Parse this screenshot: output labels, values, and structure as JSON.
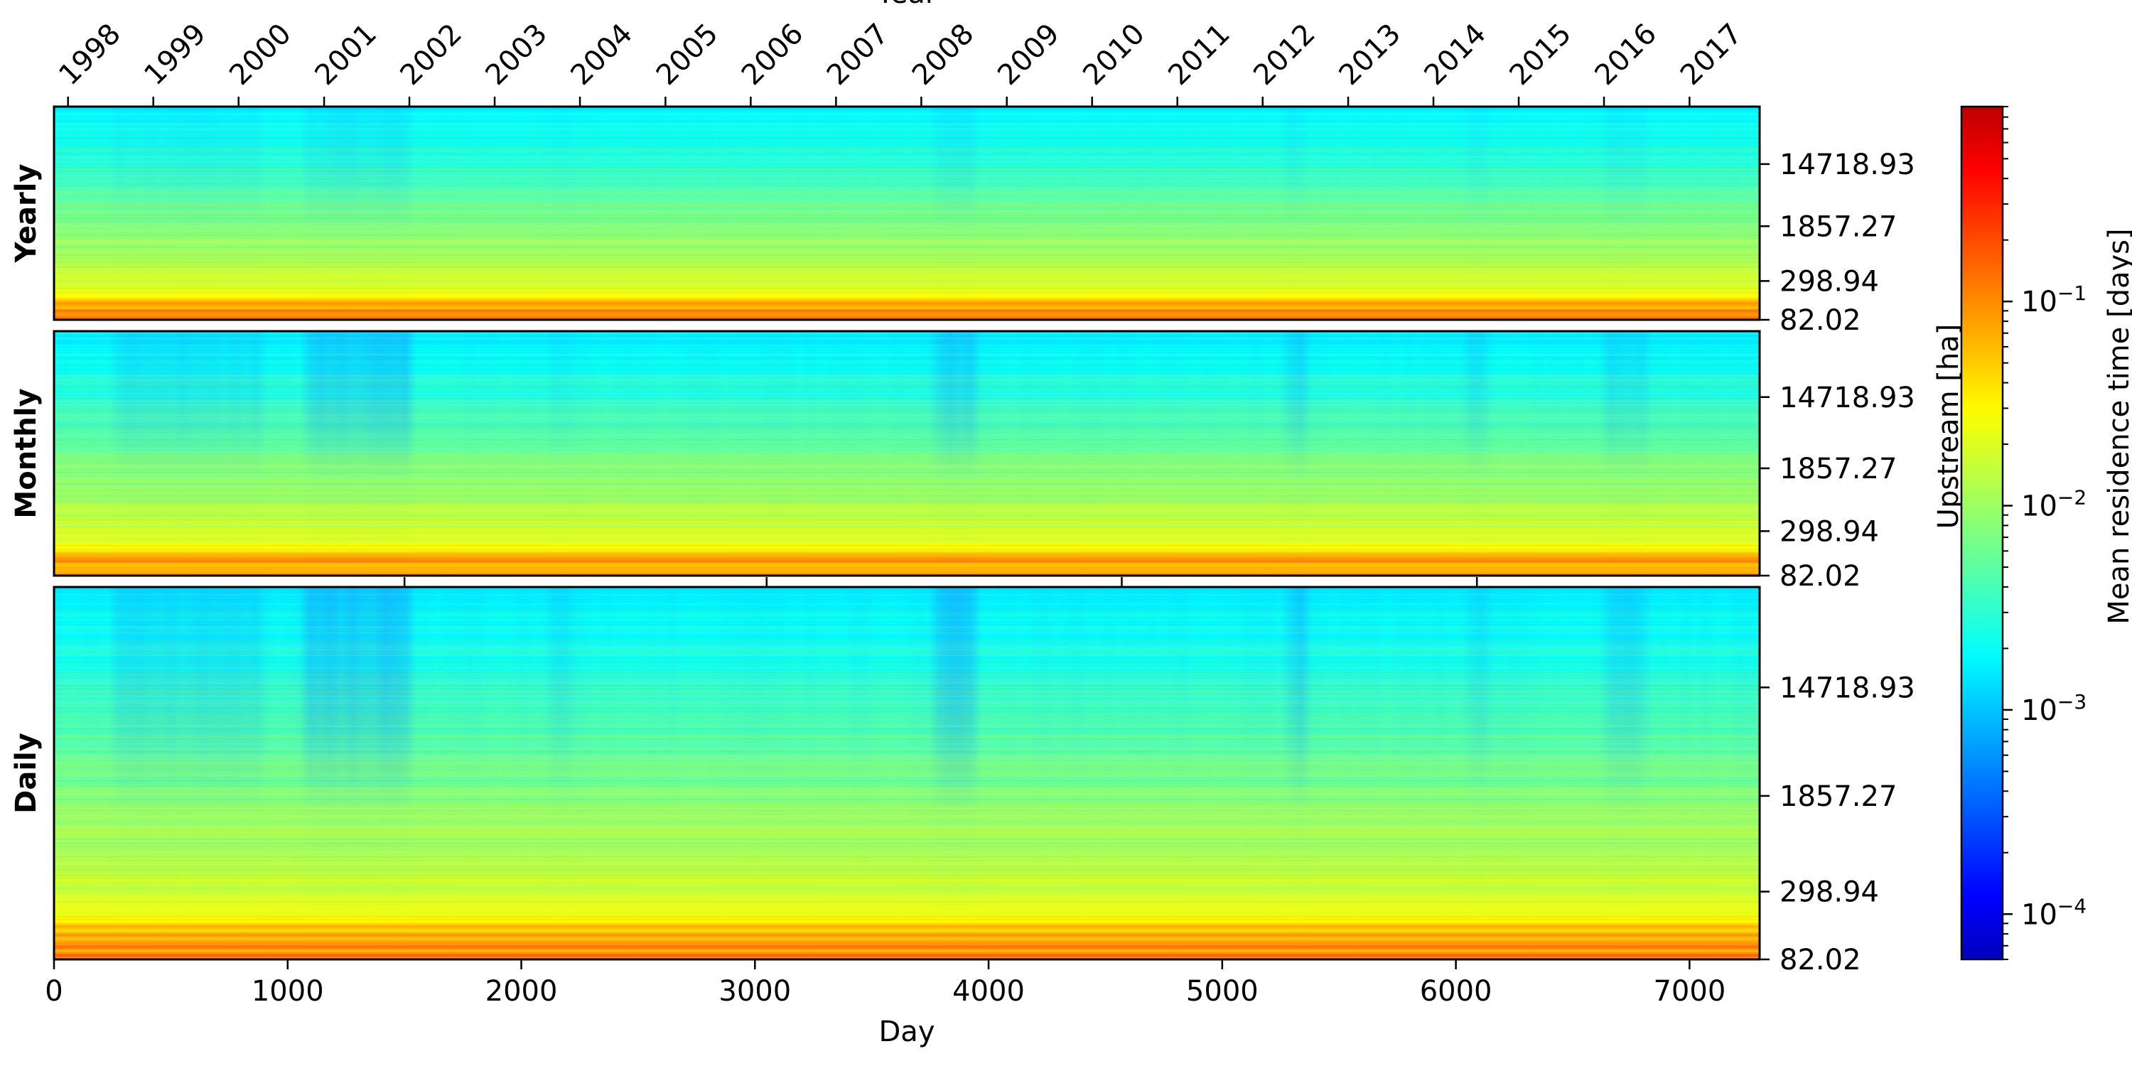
{
  "chart_data": {
    "type": "heatmap",
    "top_axis": {
      "label": "Year",
      "ticks": [
        {
          "label": "1998",
          "day": 60
        },
        {
          "label": "1999",
          "day": 425
        },
        {
          "label": "2000",
          "day": 790
        },
        {
          "label": "2001",
          "day": 1156
        },
        {
          "label": "2002",
          "day": 1521
        },
        {
          "label": "2003",
          "day": 1886
        },
        {
          "label": "2004",
          "day": 2251
        },
        {
          "label": "2005",
          "day": 2617
        },
        {
          "label": "2006",
          "day": 2982
        },
        {
          "label": "2007",
          "day": 3347
        },
        {
          "label": "2008",
          "day": 3712
        },
        {
          "label": "2009",
          "day": 4078
        },
        {
          "label": "2010",
          "day": 4443
        },
        {
          "label": "2011",
          "day": 4808
        },
        {
          "label": "2012",
          "day": 5173
        },
        {
          "label": "2013",
          "day": 5539
        },
        {
          "label": "2014",
          "day": 5904
        },
        {
          "label": "2015",
          "day": 6269
        },
        {
          "label": "2016",
          "day": 6634
        },
        {
          "label": "2017",
          "day": 7000
        }
      ]
    },
    "x_axis": {
      "label": "Day",
      "range": [
        0,
        7300
      ],
      "ticks": [
        0,
        1000,
        2000,
        3000,
        4000,
        5000,
        6000,
        7000
      ]
    },
    "y_axis": {
      "label": "Upstream [ha]",
      "scale": "log",
      "range": [
        82.02,
        100000
      ],
      "ticks": [
        82.02,
        298.94,
        1857.27,
        14718.93
      ]
    },
    "panels": [
      {
        "title": "Yearly"
      },
      {
        "title": "Monthly"
      },
      {
        "title": "Daily"
      }
    ],
    "colorbar": {
      "label": "Mean residence time [days]",
      "scale": "log",
      "colormap": "jet",
      "range": [
        6e-05,
        0.9
      ],
      "ticks": [
        {
          "value": 0.0001,
          "base": "10",
          "exp": "−4"
        },
        {
          "value": 0.001,
          "base": "10",
          "exp": "−3"
        },
        {
          "value": 0.01,
          "base": "10",
          "exp": "−2"
        },
        {
          "value": 0.1,
          "base": "10",
          "exp": "−1"
        }
      ]
    }
  }
}
